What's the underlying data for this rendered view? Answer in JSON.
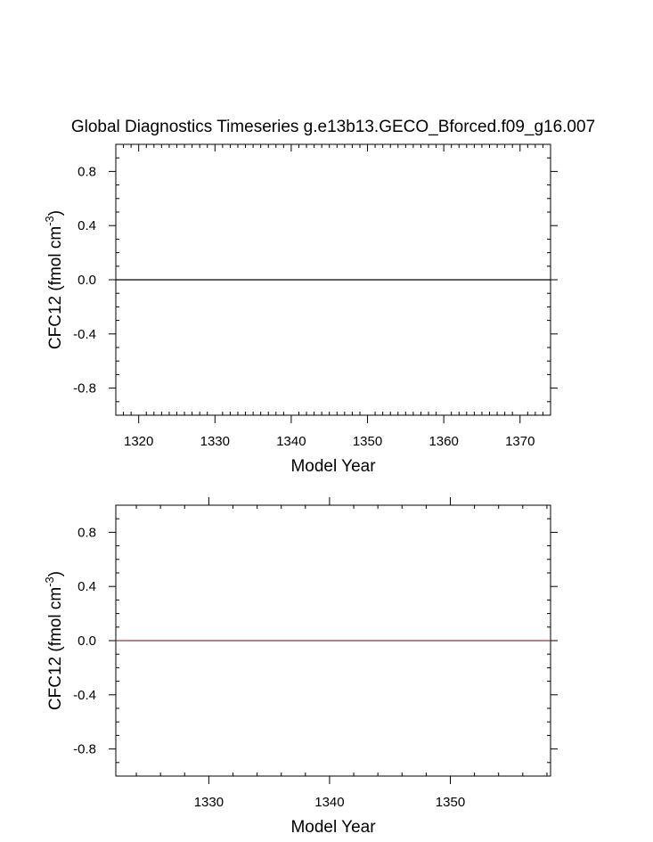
{
  "chart_data": [
    {
      "type": "line",
      "title": "Global Diagnostics Timeseries g.e13b13.GECO_Bforced.f09_g16.007",
      "xlabel": "Model Year",
      "ylabel_main": "CFC12 (fmol cm",
      "ylabel_sup": "-3",
      "ylabel_close": ")",
      "xlim": [
        1317,
        1374
      ],
      "ylim": [
        -1.0,
        1.0
      ],
      "x_ticks": [
        1320,
        1330,
        1340,
        1350,
        1360,
        1370
      ],
      "x_tick_labels": [
        "1320",
        "1330",
        "1340",
        "1350",
        "1360",
        "1370"
      ],
      "y_ticks": [
        0.8,
        0.4,
        0.0,
        -0.4,
        -0.8
      ],
      "y_tick_labels": [
        "0.8",
        "0.4",
        "0.0",
        "-0.4",
        "-0.8"
      ],
      "series": [
        {
          "color": "#000000",
          "x": [
            1317,
            1374
          ],
          "values": [
            0.0,
            0.0
          ]
        }
      ],
      "grid": false
    },
    {
      "type": "line",
      "title": "",
      "xlabel": "Model Year",
      "ylabel_main": "CFC12 (fmol cm",
      "ylabel_sup": "-3",
      "ylabel_close": ")",
      "xlim": [
        1322.3,
        1358.3
      ],
      "ylim": [
        -1.0,
        1.0
      ],
      "x_ticks": [
        1330,
        1340,
        1350
      ],
      "x_tick_labels": [
        "1330",
        "1340",
        "1350"
      ],
      "y_ticks": [
        0.8,
        0.4,
        0.0,
        -0.4,
        -0.8
      ],
      "y_tick_labels": [
        "0.8",
        "0.4",
        "0.0",
        "-0.4",
        "-0.8"
      ],
      "series": [
        {
          "color": "#8b3a3a",
          "x": [
            1322.3,
            1358.3
          ],
          "values": [
            0.0,
            0.0
          ]
        }
      ],
      "grid": false
    }
  ]
}
